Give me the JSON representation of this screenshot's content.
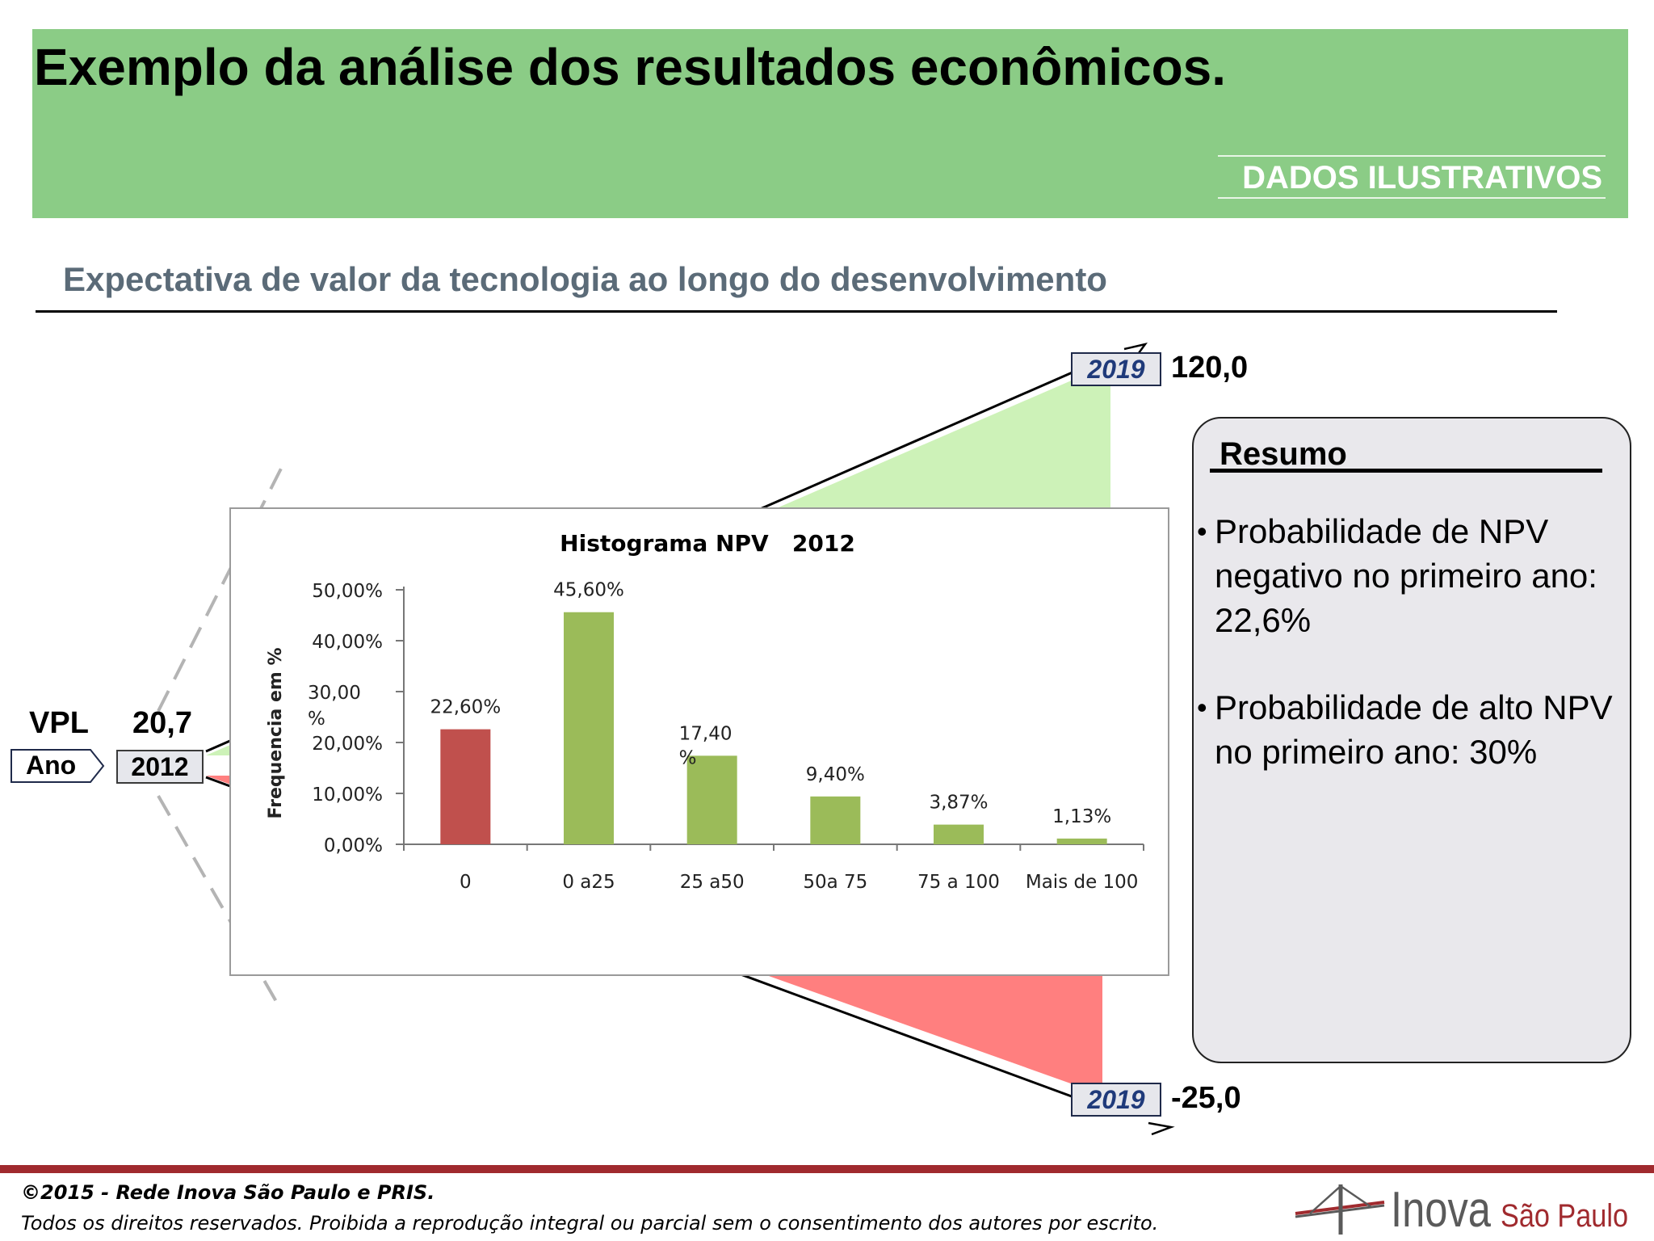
{
  "header": {
    "title": "Exemplo da análise dos resultados econômicos.",
    "badge": "DADOS ILUSTRATIVOS"
  },
  "section": {
    "subtitle": "Expectativa de valor da tecnologia ao longo do  desenvolvimento"
  },
  "projection": {
    "metric_label": "VPL",
    "start_value": "20,7",
    "year_label": "Ano",
    "start_year": "2012",
    "upper": {
      "year": "2019",
      "value": "120,0",
      "color": "#cdf2b8"
    },
    "lower": {
      "year": "2019",
      "value": "-25,0",
      "color": "#ff7f7f"
    }
  },
  "chart_data": {
    "type": "bar",
    "title": "Histograma NPV   2012",
    "xlabel": "",
    "ylabel": "Frequencia  em  %",
    "categories": [
      "0",
      "0 a25",
      "25 a50",
      "50a 75",
      "75 a 100",
      "Mais de  100"
    ],
    "values": [
      22.6,
      45.6,
      17.4,
      9.4,
      3.87,
      1.13
    ],
    "data_labels": [
      "22,60%",
      "45,60%",
      "17,40 %",
      "9,40%",
      "3,87%",
      "1,13%"
    ],
    "bar_colors": [
      "#c0504d",
      "#9bbb59",
      "#9bbb59",
      "#9bbb59",
      "#9bbb59",
      "#9bbb59"
    ],
    "y_ticks": [
      0,
      10,
      20,
      30,
      40,
      50
    ],
    "y_tick_labels": [
      "0,00%",
      "10,00%",
      "20,00%",
      "30,00 %",
      "40,00%",
      "50,00%"
    ],
    "ylim": [
      0,
      50
    ],
    "grid": false,
    "legend": "none"
  },
  "summary": {
    "heading": "Resumo",
    "items": [
      {
        "bullet": "•",
        "text": "Probabilidade de NPV negativo no primeiro ano: 22,6%"
      },
      {
        "bullet": "•",
        "text": "Probabilidade  de  alto NPV no primeiro ano: 30%"
      }
    ]
  },
  "footer": {
    "copyright": "©2015 - Rede Inova São Paulo e PRIS.",
    "rights": "Todos os direitos reservados. Proibida a reprodução integral ou parcial sem o consentimento dos autores por escrito.",
    "logo_main": "Inova",
    "logo_sub": "São Paulo",
    "logo_color": "#5a5a5a",
    "logo_accent": "#a02a2e"
  }
}
